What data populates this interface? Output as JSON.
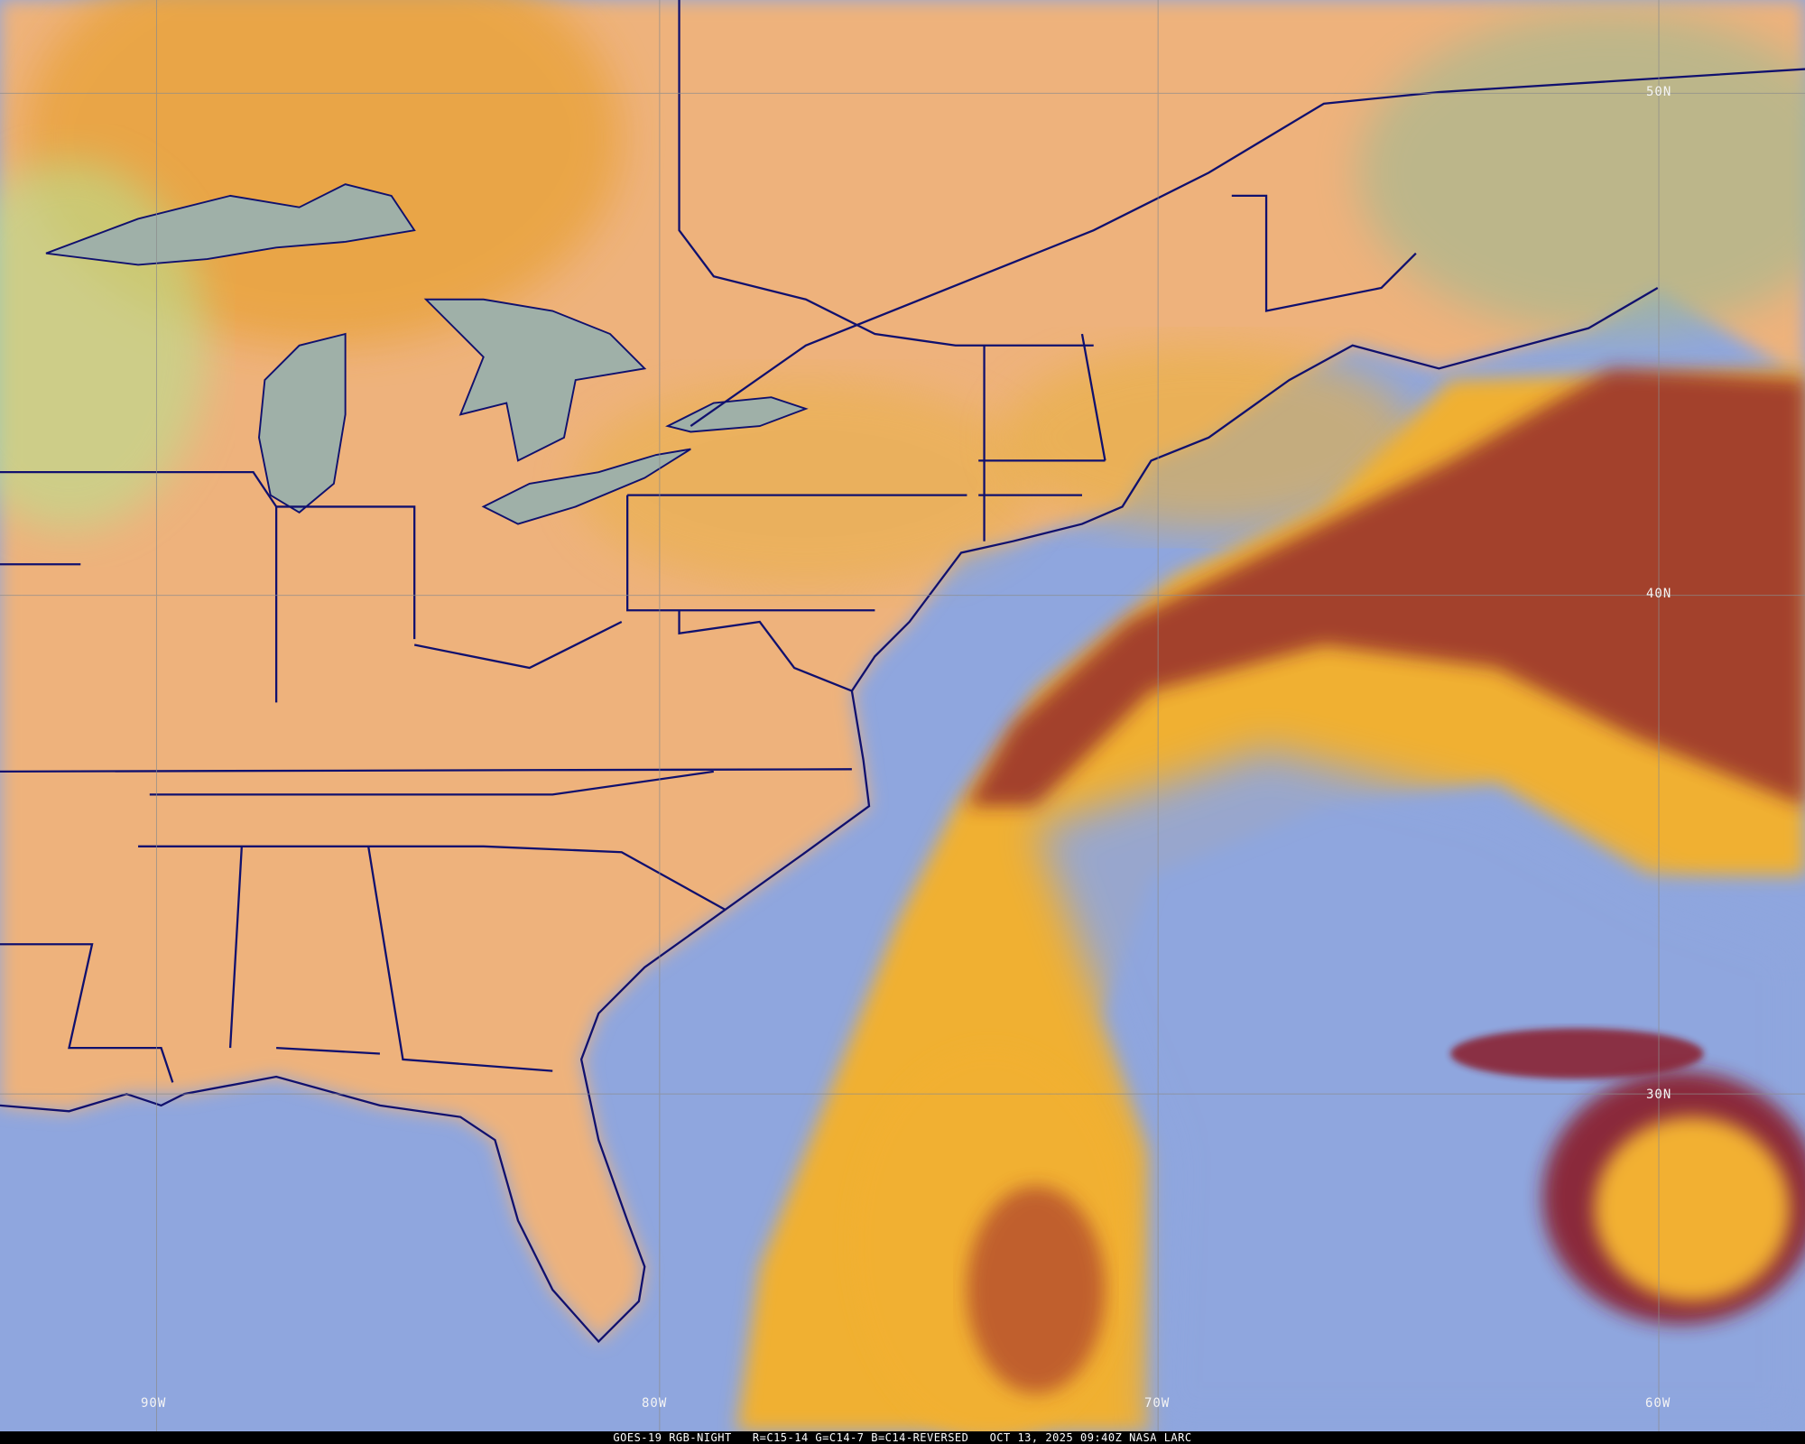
{
  "caption": {
    "satellite": "GOES-19 RGB-NIGHT",
    "recipe": "R=C15-14 G=C14-7 B=C14-REVERSED",
    "time": "OCT 13, 2025 09:40Z",
    "credit": "NASA LARC"
  },
  "lat_labels": [
    "50N",
    "40N",
    "30N"
  ],
  "lon_labels": [
    "90W",
    "80W",
    "70W",
    "60W"
  ],
  "colors": {
    "land_clear": "#f0b27a",
    "ocean_clear": "#8fa6de",
    "cloud_high": "#f2c030",
    "cloud_deep": "#8a1f2a",
    "boundaries": "#10106e",
    "grid": "#8c8c8c"
  }
}
